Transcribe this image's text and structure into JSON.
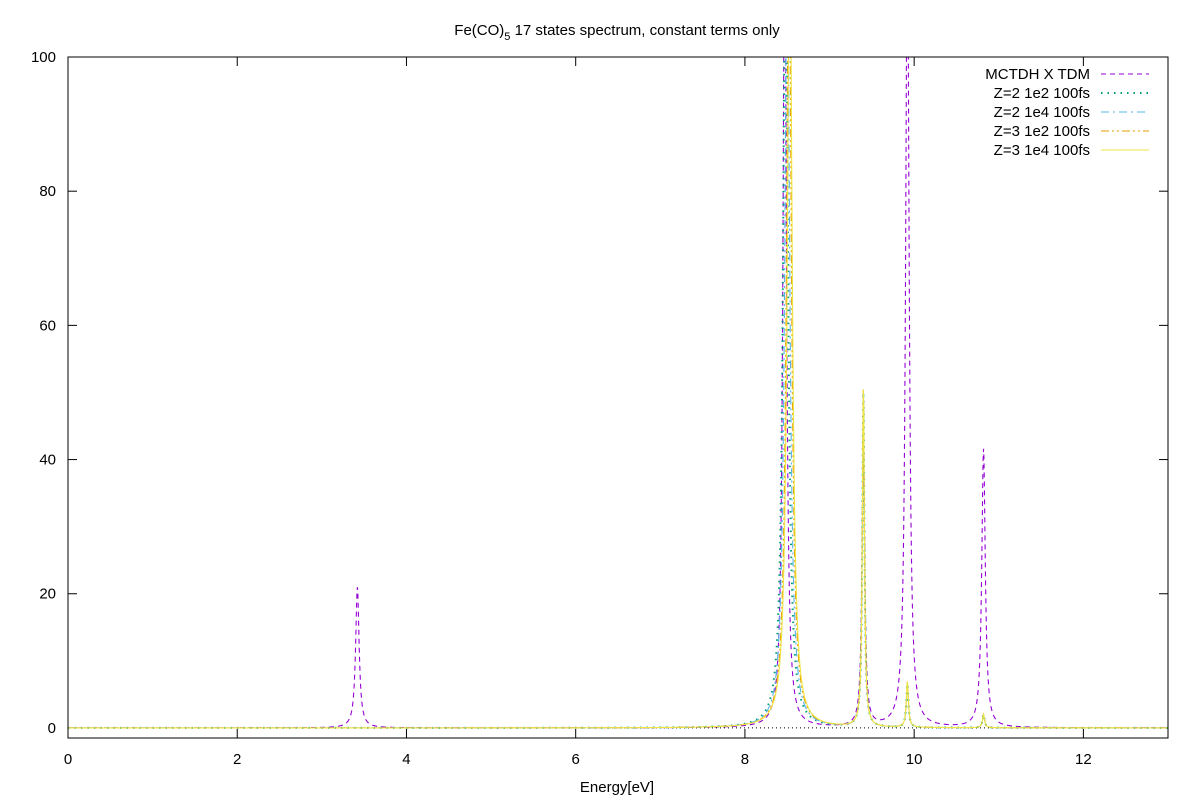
{
  "chart_data": {
    "type": "line",
    "title": {
      "prefix": "Fe(CO)",
      "subscript": "5",
      "suffix": " 17 states spectrum, constant terms only"
    },
    "xlabel": "Energy[eV]",
    "ylabel": "",
    "xlim": [
      0,
      13
    ],
    "ylim": [
      -1.5,
      100
    ],
    "xticks": [
      0,
      2,
      4,
      6,
      8,
      10,
      12
    ],
    "yticks": [
      0,
      20,
      40,
      60,
      80,
      100
    ],
    "grid": false,
    "legend_position": "top-right",
    "series": [
      {
        "name": "MCTDH X TDM",
        "color": "#9400d3",
        "dash": "dashed",
        "peaks": [
          {
            "x": 3.42,
            "height": 21,
            "width": 0.05
          },
          {
            "x": 8.47,
            "height": 120,
            "width": 0.05
          },
          {
            "x": 9.4,
            "height": 42,
            "width": 0.04
          },
          {
            "x": 9.92,
            "height": 120,
            "width": 0.05
          },
          {
            "x": 10.82,
            "height": 41.5,
            "width": 0.05
          }
        ]
      },
      {
        "name": "Z=2 1e2 100fs",
        "color": "#009e73",
        "dash": "dotted",
        "peaks": [
          {
            "x": 8.48,
            "height": 120,
            "width": 0.07
          },
          {
            "x": 9.4,
            "height": 50,
            "width": 0.03
          },
          {
            "x": 9.92,
            "height": 6.5,
            "width": 0.03
          },
          {
            "x": 10.82,
            "height": 2,
            "width": 0.03
          }
        ]
      },
      {
        "name": "Z=2 1e4 100fs",
        "color": "#56b4e9",
        "dash": "dashdot",
        "peaks": [
          {
            "x": 8.5,
            "height": 120,
            "width": 0.07
          },
          {
            "x": 9.4,
            "height": 50,
            "width": 0.03
          },
          {
            "x": 9.92,
            "height": 6.5,
            "width": 0.03
          },
          {
            "x": 10.82,
            "height": 2,
            "width": 0.03
          }
        ]
      },
      {
        "name": "Z=3 1e2 100fs",
        "color": "#e69f00",
        "dash": "dashdotdot",
        "peaks": [
          {
            "x": 8.52,
            "height": 120,
            "width": 0.07
          },
          {
            "x": 9.4,
            "height": 50.5,
            "width": 0.03
          },
          {
            "x": 9.92,
            "height": 6.8,
            "width": 0.03
          },
          {
            "x": 10.82,
            "height": 2,
            "width": 0.03
          }
        ]
      },
      {
        "name": "Z=3 1e4 100fs",
        "color": "#f0e442",
        "dash": "solid",
        "peaks": [
          {
            "x": 8.53,
            "height": 120,
            "width": 0.07
          },
          {
            "x": 9.4,
            "height": 50.5,
            "width": 0.03
          },
          {
            "x": 9.92,
            "height": 6.8,
            "width": 0.03
          },
          {
            "x": 10.82,
            "height": 2,
            "width": 0.03
          }
        ]
      }
    ]
  }
}
